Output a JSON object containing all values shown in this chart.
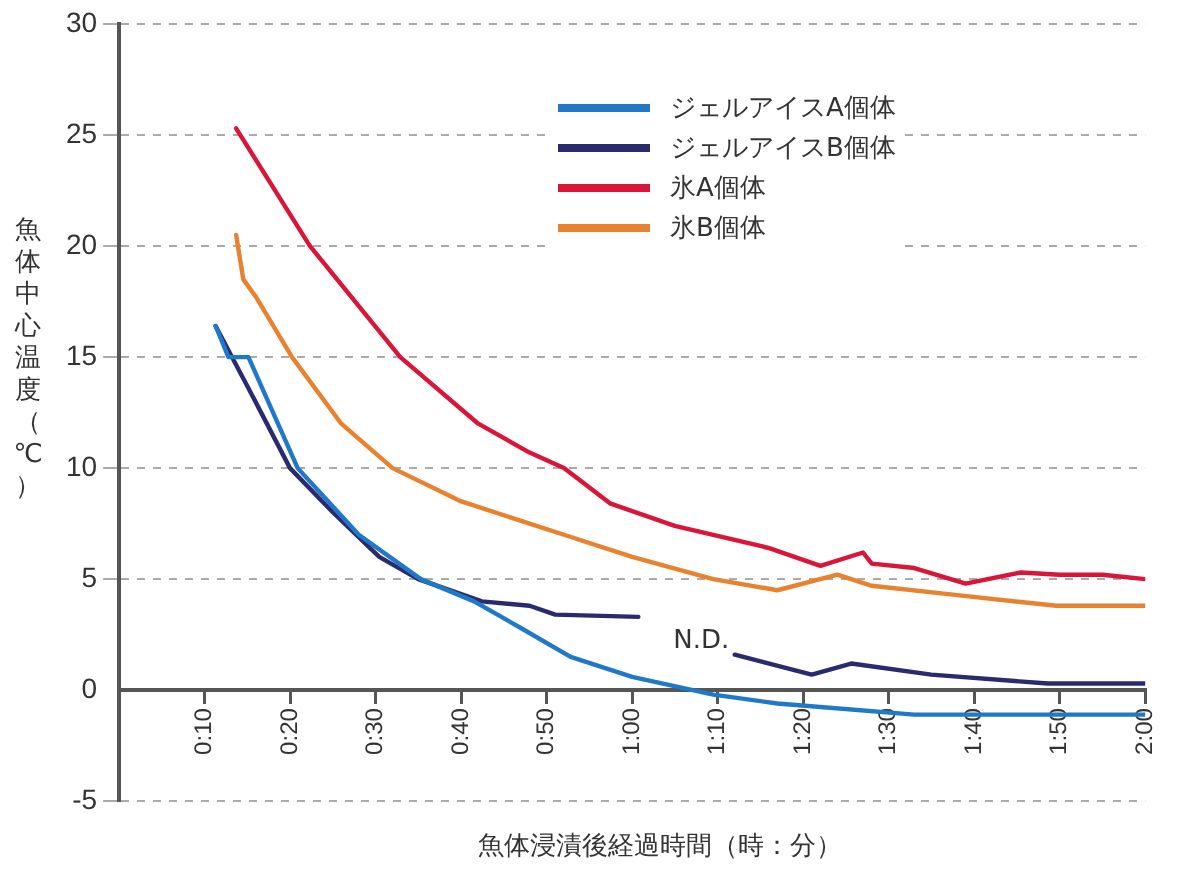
{
  "chart_data": {
    "type": "line",
    "xlabel": "魚体浸漬後経過時間（時：分）",
    "ylabel": "魚体中心温度（℃）",
    "xlim": [
      0,
      2
    ],
    "ylim": [
      -5,
      30
    ],
    "xticks": [
      {
        "value": 0.1667,
        "label": "0:10"
      },
      {
        "value": 0.3333,
        "label": "0:20"
      },
      {
        "value": 0.5,
        "label": "0:30"
      },
      {
        "value": 0.6667,
        "label": "0:40"
      },
      {
        "value": 0.8333,
        "label": "0:50"
      },
      {
        "value": 1,
        "label": "1:00"
      },
      {
        "value": 1.1667,
        "label": "1:10"
      },
      {
        "value": 1.3333,
        "label": "1:20"
      },
      {
        "value": 1.5,
        "label": "1:30"
      },
      {
        "value": 1.6667,
        "label": "1:40"
      },
      {
        "value": 1.8333,
        "label": "1:50"
      },
      {
        "value": 2,
        "label": "2:00"
      }
    ],
    "yticks": [
      -5,
      0,
      5,
      10,
      15,
      20,
      25,
      30
    ],
    "grid": "y",
    "legend": "top right",
    "marker": "none",
    "line_style": "solid",
    "annotations": [
      "N.D."
    ],
    "series": [
      {
        "name": "ジェルアイスA個体",
        "color": "#1f78c8",
        "x": [
          0.188,
          0.213,
          0.252,
          0.348,
          0.467,
          0.588,
          0.692,
          0.783,
          0.88,
          1.0,
          1.158,
          1.283,
          1.55,
          2.0
        ],
        "values": [
          16.4,
          15,
          15,
          10,
          7,
          5,
          4,
          2.8,
          1.5,
          0.6,
          -0.2,
          -0.6,
          -1.1,
          -1.1
        ]
      },
      {
        "name": "ジェルアイスB個体",
        "color": "#2a2a6e",
        "x": [
          0.188,
          0.252,
          0.333,
          0.417,
          0.507,
          0.583,
          0.707,
          0.8,
          0.85,
          1.012,
          1.1,
          1.2,
          1.35,
          1.427,
          1.583,
          1.81,
          2.0
        ],
        "values": [
          16.4,
          13.6,
          10,
          8,
          6,
          5,
          4,
          3.8,
          3.4,
          3.3,
          null,
          1.6,
          0.7,
          1.2,
          0.7,
          0.3,
          0.3
        ]
      },
      {
        "name": "氷A個体",
        "color": "#d9163a",
        "x": [
          0.228,
          0.372,
          0.548,
          0.7,
          0.8,
          0.867,
          0.958,
          1.083,
          1.267,
          1.367,
          1.45,
          1.467,
          1.55,
          1.65,
          1.758,
          1.833,
          1.917,
          2.0
        ],
        "values": [
          25.3,
          20,
          15,
          12,
          10.7,
          10,
          8.4,
          7.4,
          6.4,
          5.6,
          6.2,
          5.7,
          5.5,
          4.8,
          5.3,
          5.2,
          5.2,
          5.0
        ]
      },
      {
        "name": "氷B個体",
        "color": "#e8822e",
        "x": [
          0.228,
          0.242,
          0.267,
          0.337,
          0.433,
          0.533,
          0.667,
          0.8,
          0.867,
          1.0,
          1.158,
          1.283,
          1.4,
          1.467,
          1.625,
          1.827,
          2.0
        ],
        "values": [
          20.5,
          18.5,
          17.7,
          15,
          12,
          10,
          8.5,
          7.5,
          7,
          6,
          5,
          4.5,
          5.2,
          4.7,
          4.3,
          3.8,
          3.8
        ]
      }
    ]
  }
}
